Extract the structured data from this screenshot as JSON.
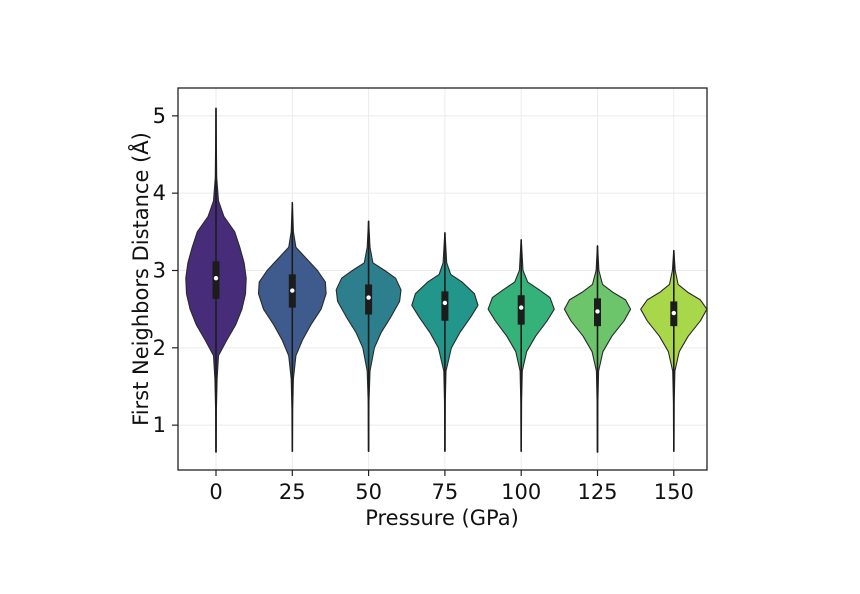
{
  "chart_data": {
    "type": "violin",
    "title": "",
    "xlabel": "Pressure (GPa)",
    "ylabel": "First Neighbors Distance (Å)",
    "categories": [
      "0",
      "25",
      "50",
      "75",
      "100",
      "125",
      "150"
    ],
    "ylim": [
      0.42,
      5.36
    ],
    "yticks": [
      1,
      2,
      3,
      4,
      5
    ],
    "grid": true,
    "colors": [
      "#472c7a",
      "#3f5a8c",
      "#2e7f8e",
      "#22968a",
      "#35b27a",
      "#6cc56a",
      "#a8d84a"
    ],
    "violins": [
      {
        "category": "0",
        "min": 0.65,
        "max": 5.1,
        "q1": 2.63,
        "median": 2.9,
        "q3": 3.12,
        "density": [
          [
            0.65,
            0.005
          ],
          [
            1.2,
            0.01
          ],
          [
            1.6,
            0.03
          ],
          [
            1.9,
            0.07
          ],
          [
            2.1,
            0.3
          ],
          [
            2.3,
            0.55
          ],
          [
            2.5,
            0.72
          ],
          [
            2.7,
            0.82
          ],
          [
            2.9,
            0.84
          ],
          [
            3.1,
            0.78
          ],
          [
            3.3,
            0.66
          ],
          [
            3.5,
            0.52
          ],
          [
            3.7,
            0.22
          ],
          [
            3.9,
            0.07
          ],
          [
            4.2,
            0.02
          ],
          [
            4.6,
            0.01
          ],
          [
            5.1,
            0.003
          ]
        ]
      },
      {
        "category": "25",
        "min": 0.66,
        "max": 3.88,
        "q1": 2.52,
        "median": 2.74,
        "q3": 2.95,
        "density": [
          [
            0.66,
            0.005
          ],
          [
            1.2,
            0.01
          ],
          [
            1.6,
            0.03
          ],
          [
            1.9,
            0.1
          ],
          [
            2.1,
            0.28
          ],
          [
            2.3,
            0.52
          ],
          [
            2.5,
            0.8
          ],
          [
            2.7,
            0.94
          ],
          [
            2.85,
            0.92
          ],
          [
            3.0,
            0.7
          ],
          [
            3.1,
            0.5
          ],
          [
            3.2,
            0.3
          ],
          [
            3.3,
            0.1
          ],
          [
            3.5,
            0.03
          ],
          [
            3.88,
            0.003
          ]
        ]
      },
      {
        "category": "50",
        "min": 0.66,
        "max": 3.64,
        "q1": 2.43,
        "median": 2.65,
        "q3": 2.82,
        "density": [
          [
            0.66,
            0.005
          ],
          [
            1.3,
            0.01
          ],
          [
            1.7,
            0.04
          ],
          [
            2.0,
            0.16
          ],
          [
            2.2,
            0.35
          ],
          [
            2.4,
            0.62
          ],
          [
            2.6,
            0.86
          ],
          [
            2.75,
            0.9
          ],
          [
            2.9,
            0.75
          ],
          [
            3.0,
            0.45
          ],
          [
            3.1,
            0.12
          ],
          [
            3.3,
            0.04
          ],
          [
            3.64,
            0.003
          ]
        ]
      },
      {
        "category": "75",
        "min": 0.66,
        "max": 3.49,
        "q1": 2.35,
        "median": 2.58,
        "q3": 2.73,
        "density": [
          [
            0.66,
            0.005
          ],
          [
            1.3,
            0.01
          ],
          [
            1.7,
            0.03
          ],
          [
            2.0,
            0.18
          ],
          [
            2.2,
            0.42
          ],
          [
            2.4,
            0.72
          ],
          [
            2.55,
            0.92
          ],
          [
            2.7,
            0.82
          ],
          [
            2.85,
            0.48
          ],
          [
            2.95,
            0.16
          ],
          [
            3.1,
            0.05
          ],
          [
            3.49,
            0.003
          ]
        ]
      },
      {
        "category": "100",
        "min": 0.66,
        "max": 3.4,
        "q1": 2.3,
        "median": 2.52,
        "q3": 2.68,
        "density": [
          [
            0.66,
            0.005
          ],
          [
            1.3,
            0.01
          ],
          [
            1.7,
            0.03
          ],
          [
            1.95,
            0.15
          ],
          [
            2.15,
            0.4
          ],
          [
            2.35,
            0.72
          ],
          [
            2.5,
            0.92
          ],
          [
            2.65,
            0.8
          ],
          [
            2.75,
            0.5
          ],
          [
            2.85,
            0.18
          ],
          [
            3.0,
            0.05
          ],
          [
            3.4,
            0.003
          ]
        ]
      },
      {
        "category": "125",
        "min": 0.65,
        "max": 3.32,
        "q1": 2.28,
        "median": 2.47,
        "q3": 2.64,
        "density": [
          [
            0.65,
            0.005
          ],
          [
            1.3,
            0.01
          ],
          [
            1.7,
            0.03
          ],
          [
            1.95,
            0.15
          ],
          [
            2.15,
            0.4
          ],
          [
            2.35,
            0.74
          ],
          [
            2.5,
            0.92
          ],
          [
            2.62,
            0.78
          ],
          [
            2.72,
            0.42
          ],
          [
            2.82,
            0.14
          ],
          [
            3.0,
            0.04
          ],
          [
            3.32,
            0.003
          ]
        ]
      },
      {
        "category": "150",
        "min": 0.66,
        "max": 3.26,
        "q1": 2.28,
        "median": 2.45,
        "q3": 2.6,
        "density": [
          [
            0.66,
            0.005
          ],
          [
            1.3,
            0.01
          ],
          [
            1.7,
            0.03
          ],
          [
            1.95,
            0.15
          ],
          [
            2.15,
            0.4
          ],
          [
            2.35,
            0.74
          ],
          [
            2.5,
            0.92
          ],
          [
            2.62,
            0.74
          ],
          [
            2.72,
            0.38
          ],
          [
            2.82,
            0.12
          ],
          [
            3.0,
            0.04
          ],
          [
            3.26,
            0.003
          ]
        ]
      }
    ]
  }
}
